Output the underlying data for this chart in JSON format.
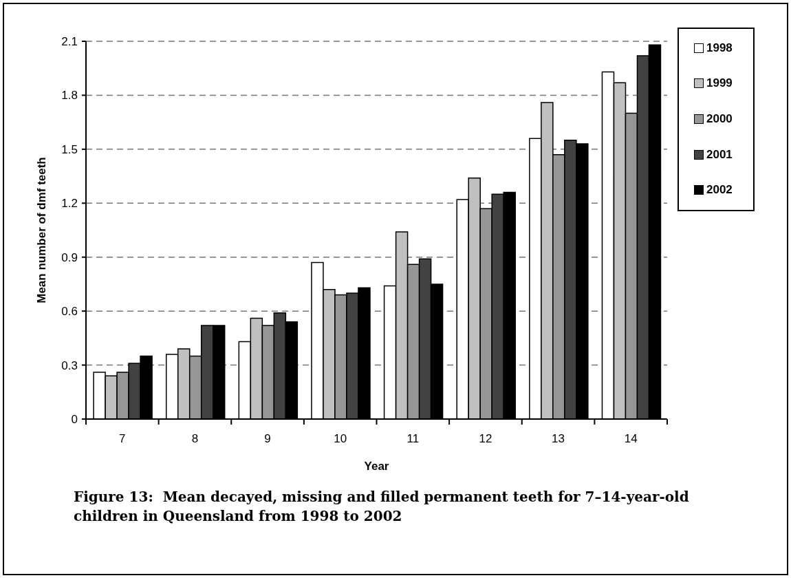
{
  "chart_data": {
    "type": "bar",
    "title": "Figure 13:  Mean decayed, missing and filled permanent teeth for 7–14-year-old children in Queensland from 1998 to 2002",
    "xlabel": "Year",
    "ylabel": "Mean number of dmf teeth",
    "categories": [
      "7",
      "8",
      "9",
      "10",
      "11",
      "12",
      "13",
      "14"
    ],
    "series": [
      {
        "name": "1998",
        "color": "#ffffff",
        "values": [
          0.26,
          0.36,
          0.43,
          0.87,
          0.74,
          1.22,
          1.56,
          1.93
        ]
      },
      {
        "name": "1999",
        "color": "#c0c0c0",
        "values": [
          0.24,
          0.39,
          0.56,
          0.72,
          1.04,
          1.34,
          1.76,
          1.87
        ]
      },
      {
        "name": "2000",
        "color": "#969696",
        "values": [
          0.26,
          0.35,
          0.52,
          0.69,
          0.86,
          1.17,
          1.47,
          1.7
        ]
      },
      {
        "name": "2001",
        "color": "#424242",
        "values": [
          0.31,
          0.52,
          0.59,
          0.7,
          0.89,
          1.25,
          1.55,
          2.02
        ]
      },
      {
        "name": "2002",
        "color": "#000000",
        "values": [
          0.35,
          0.52,
          0.54,
          0.73,
          0.75,
          1.26,
          1.53,
          2.08
        ]
      }
    ],
    "ylim": [
      0,
      2.1
    ],
    "yticks": [
      0,
      0.3,
      0.6,
      0.9,
      1.2,
      1.5,
      1.8,
      2.1
    ],
    "grid": "y",
    "legend": "right"
  }
}
